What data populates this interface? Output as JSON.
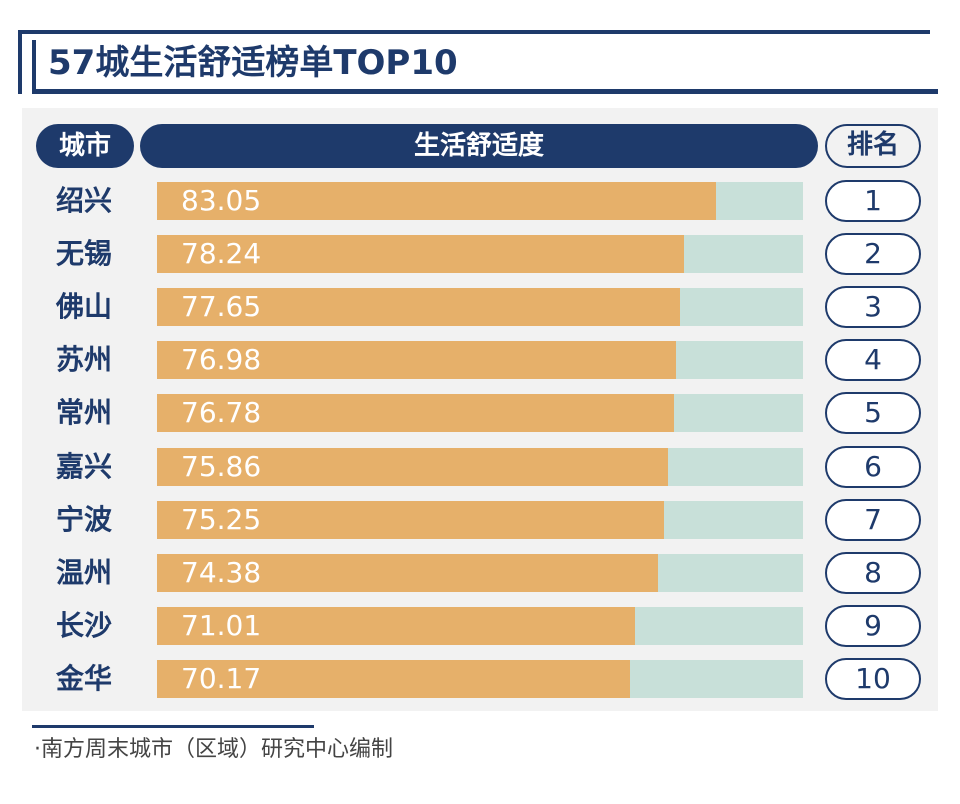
{
  "title": "57城生活舒适榜单TOP10",
  "header": {
    "city": "城市",
    "score": "生活舒适度",
    "rank": "排名"
  },
  "source": "·南方周末城市（区域）研究中心编制",
  "colors": {
    "navy": "#1e3a6b",
    "bar": "#e6b06a",
    "track": "#c8e0d9"
  },
  "chart_data": {
    "type": "bar",
    "orientation": "horizontal",
    "title": "57城生活舒适榜单TOP10",
    "categories": [
      "绍兴",
      "无锡",
      "佛山",
      "苏州",
      "常州",
      "嘉兴",
      "宁波",
      "温州",
      "长沙",
      "金华"
    ],
    "values": [
      83.05,
      78.24,
      77.65,
      76.98,
      76.78,
      75.86,
      75.25,
      74.38,
      71.01,
      70.17
    ],
    "value_labels": [
      "83.05",
      "78.24",
      "77.65",
      "76.98",
      "76.78",
      "75.86",
      "75.25",
      "74.38",
      "71.01",
      "70.17"
    ],
    "ranks": [
      "1",
      "2",
      "3",
      "4",
      "5",
      "6",
      "7",
      "8",
      "9",
      "10"
    ],
    "xlim": [
      0,
      95.9
    ],
    "grid": false
  }
}
